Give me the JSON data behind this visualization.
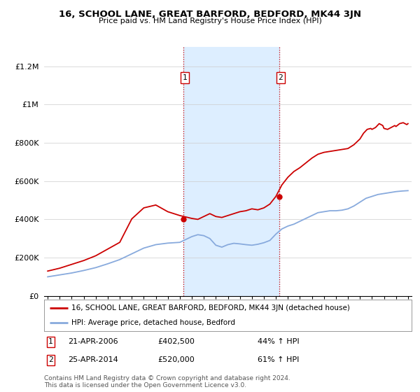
{
  "title": "16, SCHOOL LANE, GREAT BARFORD, BEDFORD, MK44 3JN",
  "subtitle": "Price paid vs. HM Land Registry's House Price Index (HPI)",
  "sale1_date": "21-APR-2006",
  "sale1_price": 402500,
  "sale1_hpi": "44% ↑ HPI",
  "sale1_label": "1",
  "sale2_date": "25-APR-2014",
  "sale2_price": 520000,
  "sale2_hpi": "61% ↑ HPI",
  "sale2_label": "2",
  "legend_line1": "16, SCHOOL LANE, GREAT BARFORD, BEDFORD, MK44 3JN (detached house)",
  "legend_line2": "HPI: Average price, detached house, Bedford",
  "footer": "Contains HM Land Registry data © Crown copyright and database right 2024.\nThis data is licensed under the Open Government Licence v3.0.",
  "line_color_red": "#cc0000",
  "line_color_blue": "#88aadd",
  "shaded_region_color": "#ddeeff",
  "background_color": "#ffffff",
  "ylim": [
    0,
    1300000
  ],
  "yticks": [
    0,
    200000,
    400000,
    600000,
    800000,
    1000000,
    1200000
  ],
  "ytick_labels": [
    "£0",
    "£200K",
    "£400K",
    "£600K",
    "£800K",
    "£1M",
    "£1.2M"
  ],
  "x_start_year": 1995,
  "x_end_year": 2025,
  "sale1_x": 2006.3,
  "sale2_x": 2014.3,
  "red_years": [
    1995,
    1996,
    1997,
    1998,
    1999,
    2000,
    2001,
    2002,
    2003,
    2004,
    2005,
    2006,
    2007,
    2007.5,
    2008,
    2008.5,
    2009,
    2009.5,
    2010,
    2010.5,
    2011,
    2011.5,
    2012,
    2012.5,
    2013,
    2013.5,
    2014,
    2014.5,
    2015,
    2015.5,
    2016,
    2016.5,
    2017,
    2017.5,
    2018,
    2018.5,
    2019,
    2019.5,
    2020,
    2020.5,
    2021,
    2021.3,
    2021.6,
    2021.9,
    2022,
    2022.3,
    2022.6,
    2022.9,
    2023,
    2023.3,
    2023.6,
    2023.9,
    2024,
    2024.3,
    2024.6,
    2024.9,
    2025
  ],
  "red_vals": [
    130000,
    145000,
    165000,
    185000,
    210000,
    245000,
    280000,
    402500,
    460000,
    475000,
    440000,
    420000,
    405000,
    400000,
    415000,
    430000,
    415000,
    410000,
    420000,
    430000,
    440000,
    445000,
    455000,
    450000,
    460000,
    480000,
    520000,
    580000,
    620000,
    650000,
    670000,
    695000,
    720000,
    740000,
    750000,
    755000,
    760000,
    765000,
    770000,
    790000,
    820000,
    850000,
    870000,
    875000,
    870000,
    880000,
    900000,
    890000,
    875000,
    870000,
    880000,
    890000,
    885000,
    900000,
    905000,
    895000,
    900000
  ],
  "blue_years": [
    1995,
    1996,
    1997,
    1998,
    1999,
    2000,
    2001,
    2002,
    2003,
    2004,
    2005,
    2006,
    2007,
    2007.5,
    2008,
    2008.5,
    2009,
    2009.5,
    2010,
    2010.5,
    2011,
    2011.5,
    2012,
    2012.5,
    2013,
    2013.5,
    2014,
    2014.5,
    2015,
    2015.5,
    2016,
    2016.5,
    2017,
    2017.5,
    2018,
    2018.5,
    2019,
    2019.5,
    2020,
    2020.5,
    2021,
    2021.5,
    2022,
    2022.5,
    2023,
    2023.5,
    2024,
    2024.5,
    2025
  ],
  "blue_vals": [
    100000,
    110000,
    120000,
    133000,
    148000,
    168000,
    190000,
    220000,
    250000,
    268000,
    276000,
    280000,
    310000,
    320000,
    315000,
    300000,
    265000,
    255000,
    268000,
    275000,
    272000,
    268000,
    265000,
    270000,
    278000,
    290000,
    323000,
    350000,
    365000,
    375000,
    390000,
    405000,
    420000,
    435000,
    440000,
    445000,
    445000,
    448000,
    455000,
    470000,
    490000,
    510000,
    520000,
    530000,
    535000,
    540000,
    545000,
    548000,
    550000
  ]
}
